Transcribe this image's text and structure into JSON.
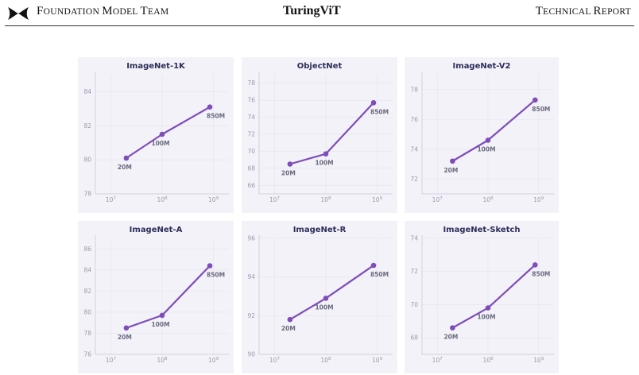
{
  "header": {
    "logo_icon": "bowtie-logo-icon",
    "left_first": "F",
    "left_rest1": "OUNDATION ",
    "left_first2": "M",
    "left_rest2": "ODEL ",
    "left_first3": "T",
    "left_rest3": "EAM",
    "center": "TuringViT",
    "right_first": "T",
    "right_rest1": "ECHNICAL ",
    "right_first2": "R",
    "right_rest2": "EPORT"
  },
  "colors": {
    "panel_bg": "#f3f2f8",
    "line": "#7e4db8",
    "grid": "#e4e3ee",
    "axis": "#c9c8d6"
  },
  "chart_data": [
    {
      "type": "line",
      "title": "ImageNet-1K",
      "x": [
        20000000,
        100000000,
        850000000
      ],
      "x_labels": [
        "20M",
        "100M",
        "850M"
      ],
      "values": [
        80.1,
        81.5,
        83.1
      ],
      "ylim": [
        78,
        85
      ],
      "yticks": [
        78,
        80,
        82,
        84
      ],
      "xscale": "log",
      "xlim": [
        5000000,
        2000000000
      ],
      "xticks": [
        10000000,
        100000000,
        1000000000
      ],
      "xtick_labels": [
        [
          "10",
          "7"
        ],
        [
          "10",
          "8"
        ],
        [
          "10",
          "9"
        ]
      ],
      "grid": true
    },
    {
      "type": "line",
      "title": "ObjectNet",
      "x": [
        20000000,
        100000000,
        850000000
      ],
      "x_labels": [
        "20M",
        "100M",
        "850M"
      ],
      "values": [
        68.5,
        69.7,
        75.7
      ],
      "ylim": [
        65,
        79
      ],
      "yticks": [
        66,
        68,
        70,
        72,
        74,
        76,
        78
      ],
      "xscale": "log",
      "xlim": [
        5000000,
        2000000000
      ],
      "xticks": [
        10000000,
        100000000,
        1000000000
      ],
      "xtick_labels": [
        [
          "10",
          "7"
        ],
        [
          "10",
          "8"
        ],
        [
          "10",
          "9"
        ]
      ],
      "grid": true
    },
    {
      "type": "line",
      "title": "ImageNet-V2",
      "x": [
        20000000,
        100000000,
        850000000
      ],
      "x_labels": [
        "20M",
        "100M",
        "850M"
      ],
      "values": [
        73.2,
        74.6,
        77.3
      ],
      "ylim": [
        71,
        79
      ],
      "yticks": [
        72,
        74,
        76,
        78
      ],
      "xscale": "log",
      "xlim": [
        5000000,
        2000000000
      ],
      "xticks": [
        10000000,
        100000000,
        1000000000
      ],
      "xtick_labels": [
        [
          "10",
          "7"
        ],
        [
          "10",
          "8"
        ],
        [
          "10",
          "9"
        ]
      ],
      "grid": true
    },
    {
      "type": "line",
      "title": "ImageNet-A",
      "x": [
        20000000,
        100000000,
        850000000
      ],
      "x_labels": [
        "20M",
        "100M",
        "850M"
      ],
      "values": [
        78.5,
        79.7,
        84.4
      ],
      "ylim": [
        76,
        87
      ],
      "yticks": [
        76,
        78,
        80,
        82,
        84,
        86
      ],
      "xscale": "log",
      "xlim": [
        5000000,
        2000000000
      ],
      "xticks": [
        10000000,
        100000000,
        1000000000
      ],
      "xtick_labels": [
        [
          "10",
          "7"
        ],
        [
          "10",
          "8"
        ],
        [
          "10",
          "9"
        ]
      ],
      "grid": true
    },
    {
      "type": "line",
      "title": "ImageNet-R",
      "x": [
        20000000,
        100000000,
        850000000
      ],
      "x_labels": [
        "20M",
        "100M",
        "850M"
      ],
      "values": [
        91.8,
        92.9,
        94.6
      ],
      "ylim": [
        90,
        96
      ],
      "yticks": [
        90,
        92,
        94,
        96
      ],
      "xscale": "log",
      "xlim": [
        5000000,
        2000000000
      ],
      "xticks": [
        10000000,
        100000000,
        1000000000
      ],
      "xtick_labels": [
        [
          "10",
          "7"
        ],
        [
          "10",
          "8"
        ],
        [
          "10",
          "9"
        ]
      ],
      "grid": true
    },
    {
      "type": "line",
      "title": "ImageNet-Sketch",
      "x": [
        20000000,
        100000000,
        850000000
      ],
      "x_labels": [
        "20M",
        "100M",
        "850M"
      ],
      "values": [
        68.6,
        69.8,
        72.4
      ],
      "ylim": [
        67,
        74
      ],
      "yticks": [
        68,
        70,
        72,
        74
      ],
      "xscale": "log",
      "xlim": [
        5000000,
        2000000000
      ],
      "xticks": [
        10000000,
        100000000,
        1000000000
      ],
      "xtick_labels": [
        [
          "10",
          "7"
        ],
        [
          "10",
          "8"
        ],
        [
          "10",
          "9"
        ]
      ],
      "grid": true
    }
  ]
}
